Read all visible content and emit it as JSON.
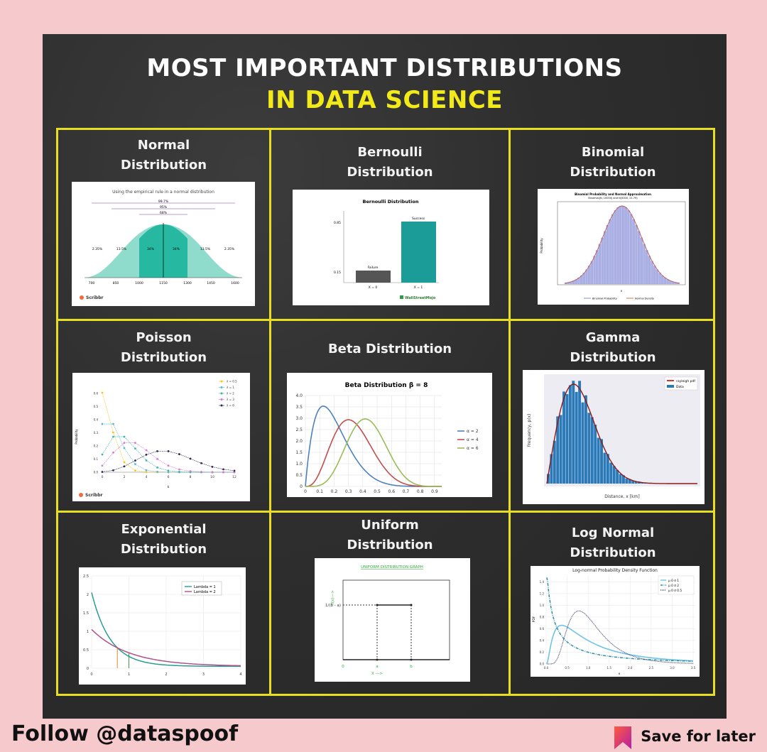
{
  "header": {
    "line1": "MOST IMPORTANT DISTRIBUTIONS",
    "line2": "IN DATA SCIENCE"
  },
  "colors": {
    "page_bg": "#f6c9cd",
    "board": "#2e2e2e",
    "grid_yellow": "#e6de1f",
    "title_yellow": "#f2ea18"
  },
  "cells": [
    {
      "title": "Normal Distribution",
      "l1": "Normal",
      "l2": "Distribution",
      "fig": {
        "caption": "Using the empirical rule in a normal distribution",
        "brand": "Scribbr",
        "pcts": [
          "99.7%",
          "95%",
          "68%"
        ],
        "areas": [
          "2.35%",
          "13.5%",
          "34%",
          "34%",
          "13.5%",
          "2.35%"
        ],
        "ticks": [
          "700",
          "850",
          "1000",
          "1150",
          "1300",
          "1450",
          "1600"
        ]
      }
    },
    {
      "title": "Bernoulli Distribution",
      "l1": "Bernoulli",
      "l2": "Distribution",
      "fig": {
        "caption": "Bernoulli Distribution",
        "labels": [
          "Failure",
          "Success"
        ],
        "x": [
          "X = 0",
          "X = 1"
        ],
        "yticks": [
          "0.85",
          "0.15"
        ],
        "brand": "WallStreetMojo"
      }
    },
    {
      "title": "Binomial Distribution",
      "l1": "Binomial",
      "l2": "Distribution",
      "fig": {
        "caption": "Binomial Probability and Normal Approximation",
        "subcaption": "Binomial(N, 10000) and N(5000, 21.79)",
        "legend": [
          "Binomial Probability",
          "Normal Density"
        ],
        "ylabel": "Probability",
        "xlabel": "x"
      }
    },
    {
      "title": "Poisson Distribution",
      "l1": "Poisson",
      "l2": "Distribution",
      "fig": {
        "brand": "Scribbr",
        "legend": [
          "λ = 0.5",
          "λ = 1",
          "λ = 2",
          "λ = 3",
          "λ = 6"
        ],
        "ylabel": "Probability",
        "xlabel": "k",
        "yticks": [
          "0.6",
          "0.5",
          "0.4",
          "0.3",
          "0.2",
          "0.1",
          "0.0"
        ],
        "xticks": [
          "0",
          "2",
          "4",
          "6",
          "8",
          "10",
          "12"
        ]
      }
    },
    {
      "title": "Beta Distribution",
      "l1": "Beta Distribution",
      "l2": "",
      "fig": {
        "caption": "Beta Distribution β = 8",
        "legend": [
          "α = 2",
          "α = 4",
          "α = 6"
        ],
        "yticks": [
          "4.0",
          "3.5",
          "3.0",
          "2.5",
          "2.0",
          "1.5",
          "1.0",
          "0.5",
          "0"
        ],
        "xticks": [
          "0",
          "0.1",
          "0.2",
          "0.3",
          "0.4",
          "0.5",
          "0.6",
          "0.7",
          "0.8",
          "0.9"
        ]
      }
    },
    {
      "title": "Gamma Distribution",
      "l1": "Gamma",
      "l2": "Distribution",
      "fig": {
        "legend": [
          "rayleigh pdf",
          "Data"
        ],
        "ylabel": "Frequency, p(x)",
        "xlabel": "Distance, x [km]"
      }
    },
    {
      "title": "Exponential Distribution",
      "l1": "Exponential",
      "l2": "Distribution",
      "fig": {
        "legend": [
          "Lambda = 1",
          "Lambda = 2"
        ],
        "yticks": [
          "2.5",
          "2",
          "1.5",
          "1",
          "0.5",
          "0"
        ],
        "xticks": [
          "0",
          "1",
          "2",
          "3",
          "4"
        ]
      }
    },
    {
      "title": "Uniform Distribution",
      "l1": "Uniform",
      "l2": "Distribution",
      "fig": {
        "caption": "UNIFORM DISTRIBUTION GRAPH",
        "ylabel": "f(x)--->",
        "level": "1/(b - a)",
        "xticks": [
          "0",
          "a",
          "b"
        ],
        "xlabel": "X --->"
      }
    },
    {
      "title": "Log Normal Distribution",
      "l1": "Log Normal",
      "l2": "Distribution",
      "fig": {
        "caption": "Log-normal Probability Density Function",
        "legend": [
          "μ 0 σ 1",
          "μ 0 σ 2",
          "μ 0 σ 0.5"
        ],
        "ylabel": "PDF",
        "xlabel": "x",
        "yticks": [
          "1.4",
          "1.2",
          "1.0",
          "0.8",
          "0.6",
          "0.4",
          "0.2",
          "0.0"
        ],
        "xticks": [
          "0.0",
          "0.5",
          "1.0",
          "1.5",
          "2.0",
          "2.5",
          "3.0",
          "3.5"
        ]
      }
    }
  ],
  "footer": {
    "follow": "Follow @dataspoof",
    "save": "Save for later"
  }
}
